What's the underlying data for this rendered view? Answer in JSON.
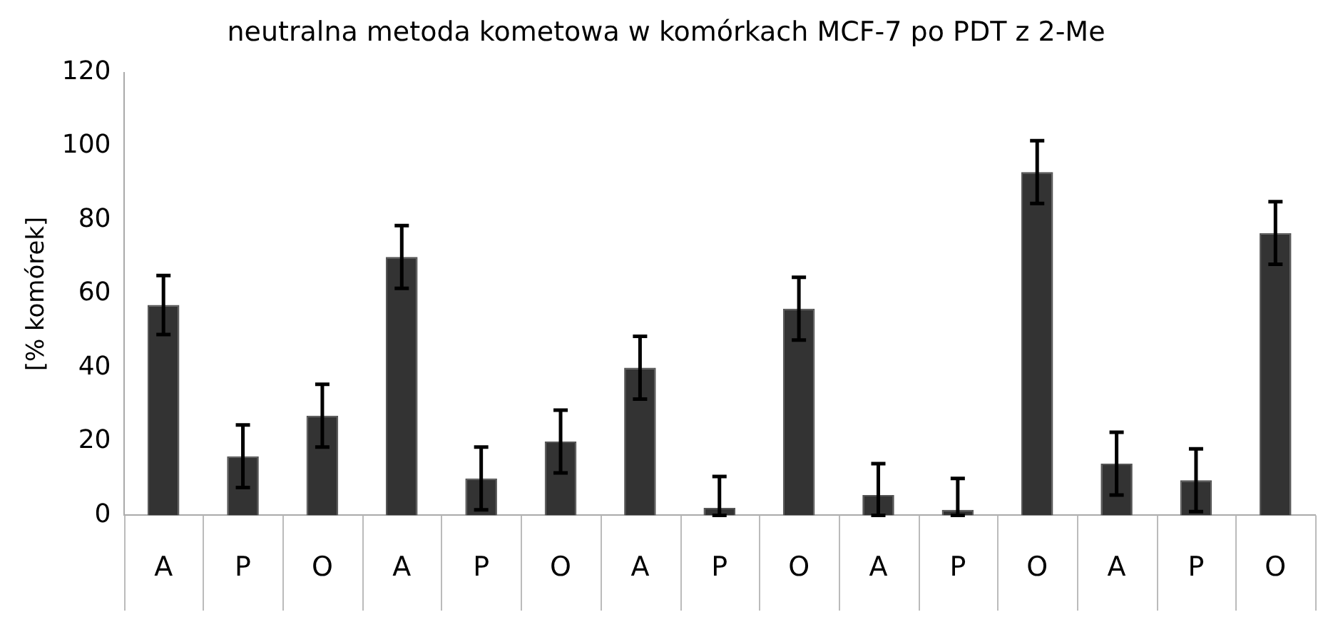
{
  "chart_data": {
    "type": "bar",
    "title": "neutralna metoda kometowa w komórkach MCF-7 po PDT z 2-Me",
    "ylabel": "[% komórek]",
    "categories": [
      "A",
      "P",
      "O",
      "A",
      "P",
      "O",
      "A",
      "P",
      "O",
      "A",
      "P",
      "O",
      "A",
      "P",
      "O"
    ],
    "values": [
      57,
      16,
      27,
      70,
      10,
      20,
      40,
      2,
      56,
      5.5,
      1.5,
      93,
      14,
      9.5,
      76.5
    ],
    "errors": [
      8,
      8.5,
      8.5,
      8.5,
      8.5,
      8.5,
      8.5,
      [
        0,
        10.5
      ],
      8.5,
      [
        0,
        14
      ],
      [
        0,
        10
      ],
      8.5,
      8.5,
      8.5,
      8.5
    ],
    "color": "#333333",
    "ylim": [
      0,
      120
    ],
    "yticks": [
      0,
      20,
      40,
      60,
      80,
      100,
      120
    ],
    "grid": false,
    "legend": false
  }
}
